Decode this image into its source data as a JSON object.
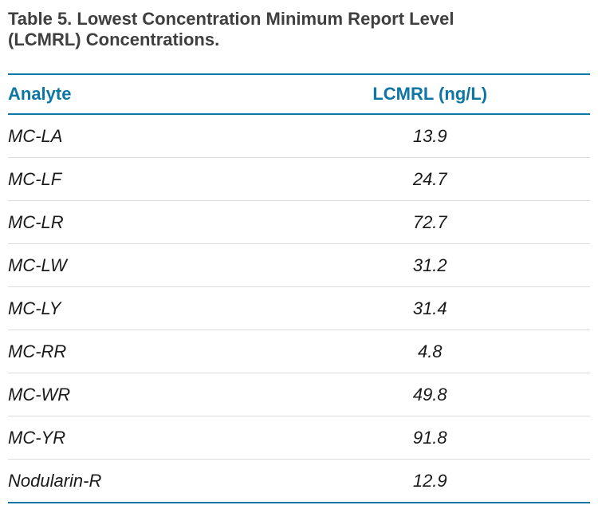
{
  "caption_lines": [
    "Table 5. Lowest Concentration Minimum Report Level",
    "(LCMRL) Concentrations."
  ],
  "table": {
    "columns": [
      "Analyte",
      "LCMRL (ng/L)"
    ],
    "rows": [
      {
        "analyte": "MC-LA",
        "lcmrl": "13.9"
      },
      {
        "analyte": "MC-LF",
        "lcmrl": "24.7"
      },
      {
        "analyte": "MC-LR",
        "lcmrl": "72.7"
      },
      {
        "analyte": "MC-LW",
        "lcmrl": "31.2"
      },
      {
        "analyte": "MC-LY",
        "lcmrl": "31.4"
      },
      {
        "analyte": "MC-RR",
        "lcmrl": "4.8"
      },
      {
        "analyte": "MC-WR",
        "lcmrl": "49.8"
      },
      {
        "analyte": "MC-YR",
        "lcmrl": "91.8"
      },
      {
        "analyte": "Nodularin-R",
        "lcmrl": "12.9"
      }
    ]
  },
  "colors": {
    "accent": "#0e76a4",
    "divider": "#dcdcdc",
    "title_text": "#3f3f3f",
    "body_text": "#1a1a1a"
  }
}
